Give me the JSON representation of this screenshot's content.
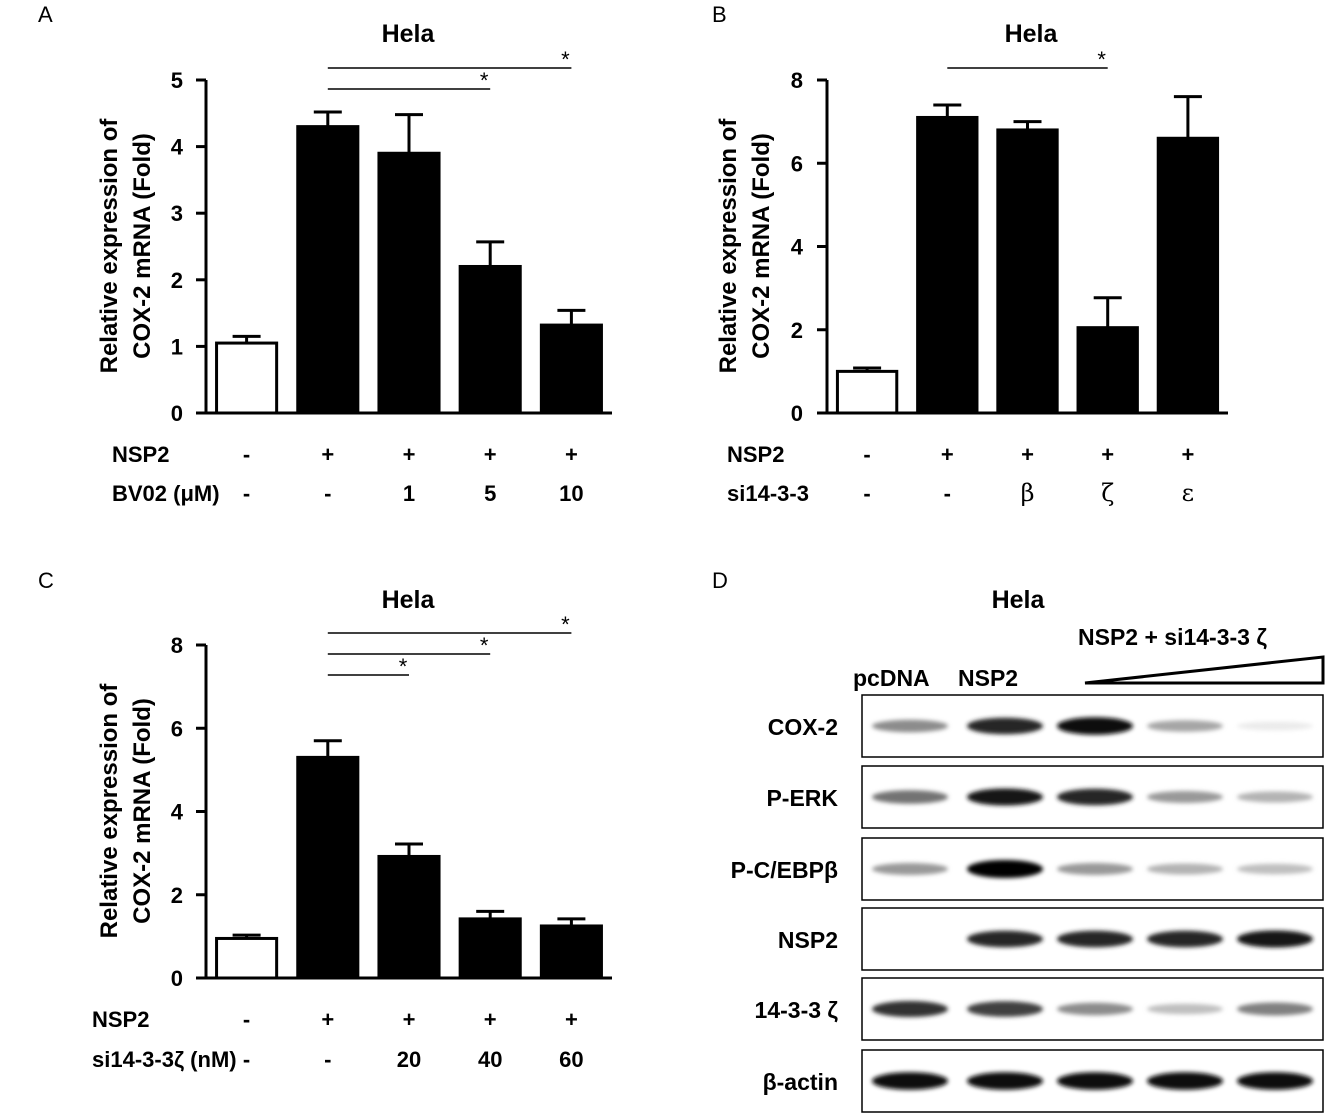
{
  "panels": [
    {
      "letter": "A",
      "title": "Hela",
      "chart_data": {
        "type": "bar",
        "title": "Hela",
        "ylabel_lines": [
          "Relative expression of",
          "COX-2 mRNA (Fold)"
        ],
        "ylim": [
          0,
          5
        ],
        "yticks": [
          "0",
          "1",
          "2",
          "3",
          "4",
          "5"
        ],
        "categories": [
          "1",
          "2",
          "3",
          "4",
          "5"
        ],
        "values": [
          1.05,
          4.3,
          3.9,
          2.2,
          1.32
        ],
        "errors": [
          0.1,
          0.22,
          0.58,
          0.37,
          0.22
        ],
        "bar_fill": [
          "#ffffff",
          "#000000",
          "#000000",
          "#000000",
          "#000000"
        ],
        "conditions": [
          {
            "label": "NSP2",
            "values": [
              "-",
              "+",
              "+",
              "+",
              "+"
            ]
          },
          {
            "label": "BV02 (μM)",
            "values": [
              "-",
              "-",
              "1",
              "5",
              "10"
            ]
          }
        ],
        "significance": [
          {
            "from": 1,
            "to": 4,
            "label": "*"
          },
          {
            "from": 1,
            "to": 3,
            "label": "*"
          }
        ]
      }
    },
    {
      "letter": "B",
      "title": "Hela",
      "chart_data": {
        "type": "bar",
        "title": "Hela",
        "ylabel_lines": [
          "Relative expression of",
          "COX-2 mRNA (Fold)"
        ],
        "ylim": [
          0,
          8
        ],
        "yticks": [
          "0",
          "2",
          "4",
          "6",
          "8"
        ],
        "categories": [
          "1",
          "2",
          "3",
          "4",
          "5"
        ],
        "values": [
          1.0,
          7.1,
          6.8,
          2.05,
          6.6
        ],
        "errors": [
          0.08,
          0.3,
          0.2,
          0.72,
          1.0
        ],
        "bar_fill": [
          "#ffffff",
          "#000000",
          "#000000",
          "#000000",
          "#000000"
        ],
        "conditions": [
          {
            "label": "NSP2",
            "values": [
              "-",
              "+",
              "+",
              "+",
              "+"
            ]
          },
          {
            "label": "si14-3-3",
            "values": [
              "-",
              "-",
              "β",
              "ζ",
              "ε"
            ]
          }
        ],
        "significance": [
          {
            "from": 1,
            "to": 3,
            "label": "*"
          }
        ]
      }
    },
    {
      "letter": "C",
      "title": "Hela",
      "chart_data": {
        "type": "bar",
        "title": "Hela",
        "ylabel_lines": [
          "Relative expression of",
          "COX-2 mRNA (Fold)"
        ],
        "ylim": [
          0,
          8
        ],
        "yticks": [
          "0",
          "2",
          "4",
          "6",
          "8"
        ],
        "categories": [
          "1",
          "2",
          "3",
          "4",
          "5"
        ],
        "values": [
          0.95,
          5.3,
          2.92,
          1.42,
          1.25
        ],
        "errors": [
          0.08,
          0.4,
          0.3,
          0.18,
          0.17
        ],
        "bar_fill": [
          "#ffffff",
          "#000000",
          "#000000",
          "#000000",
          "#000000"
        ],
        "conditions": [
          {
            "label": "NSP2",
            "values": [
              "-",
              "+",
              "+",
              "+",
              "+"
            ]
          },
          {
            "label": "si14-3-3ζ (nM)",
            "values": [
              "-",
              "-",
              "20",
              "40",
              "60"
            ]
          }
        ],
        "significance": [
          {
            "from": 1,
            "to": 4,
            "label": "*"
          },
          {
            "from": 1,
            "to": 3,
            "label": "*"
          },
          {
            "from": 1,
            "to": 2,
            "label": "*"
          }
        ]
      }
    }
  ],
  "western_blot": {
    "letter": "D",
    "title": "Hela",
    "header_treatment": "NSP2 + si14-3-3 ζ",
    "header_lanes": [
      "pcDNA",
      "NSP2"
    ],
    "rows": [
      {
        "label": "COX-2",
        "intensities": [
          0.45,
          0.85,
          0.95,
          0.35,
          0.08
        ]
      },
      {
        "label": "P-ERK",
        "intensities": [
          0.55,
          0.9,
          0.85,
          0.4,
          0.3
        ]
      },
      {
        "label": "P-C/EBPβ",
        "intensities": [
          0.4,
          1.0,
          0.4,
          0.3,
          0.25
        ]
      },
      {
        "label": "NSP2",
        "intensities": [
          0.0,
          0.85,
          0.85,
          0.85,
          0.9
        ]
      },
      {
        "label": "14-3-3 ζ",
        "intensities": [
          0.8,
          0.75,
          0.45,
          0.25,
          0.5
        ]
      },
      {
        "label": "β-actin",
        "intensities": [
          0.95,
          0.95,
          0.95,
          0.95,
          0.95
        ]
      }
    ]
  }
}
